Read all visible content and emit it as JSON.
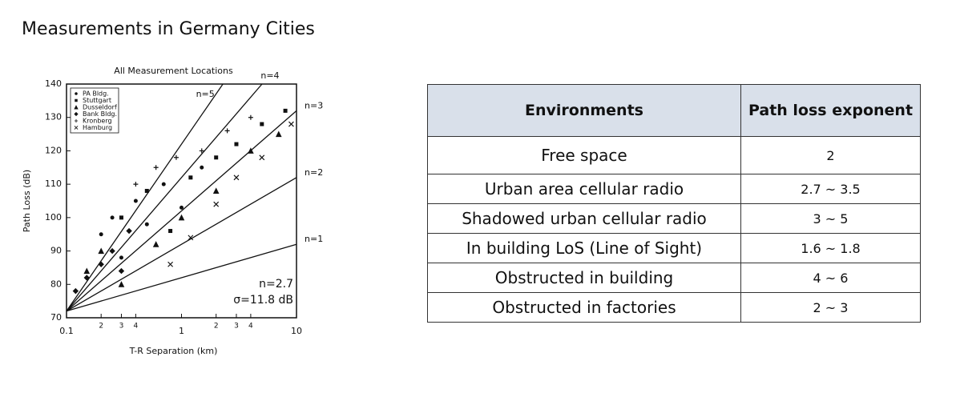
{
  "header": {
    "title": "Measurements in Germany Cities"
  },
  "chart_data": {
    "type": "scatter",
    "title": "All Measurement Locations",
    "xlabel": "T-R Separation (km)",
    "ylabel": "Path Loss (dB)",
    "xlog": true,
    "xlim": [
      0.1,
      10
    ],
    "xticks": [
      0.1,
      {
        "value": 0.2,
        "label": "2"
      },
      {
        "value": 0.3,
        "label": "3"
      },
      {
        "value": 0.4,
        "label": "4"
      },
      1,
      {
        "value": 2,
        "label": "2"
      },
      {
        "value": 3,
        "label": "3"
      },
      {
        "value": 4,
        "label": "4"
      },
      10
    ],
    "ylim": [
      70,
      140
    ],
    "yticks": [
      70,
      80,
      90,
      100,
      110,
      120,
      130,
      140
    ],
    "legend": "upper left",
    "color": "#111111",
    "series": [
      {
        "name": "PA Bldg.",
        "marker": "circle",
        "x": [
          0.2,
          0.25,
          0.3,
          0.4,
          0.5,
          0.7,
          1,
          1.5
        ],
        "values": [
          95,
          100,
          88,
          105,
          98,
          110,
          103,
          115
        ]
      },
      {
        "name": "Stuttgart",
        "marker": "square",
        "x": [
          0.3,
          0.5,
          0.8,
          1.2,
          2,
          3,
          5,
          8
        ],
        "values": [
          100,
          108,
          96,
          112,
          118,
          122,
          128,
          132
        ]
      },
      {
        "name": "Dusseldorf",
        "marker": "triangle",
        "x": [
          0.15,
          0.2,
          0.3,
          0.6,
          1,
          2,
          4,
          7
        ],
        "values": [
          84,
          90,
          80,
          92,
          100,
          108,
          120,
          125
        ]
      },
      {
        "name": "Bank Bldg.",
        "marker": "diamond",
        "x": [
          0.12,
          0.15,
          0.2,
          0.25,
          0.3,
          0.35
        ],
        "values": [
          78,
          82,
          86,
          90,
          84,
          96
        ]
      },
      {
        "name": "Kronberg",
        "marker": "plus",
        "x": [
          0.4,
          0.6,
          0.9,
          1.5,
          2.5,
          4
        ],
        "values": [
          110,
          115,
          118,
          120,
          126,
          130
        ]
      },
      {
        "name": "Hamburg",
        "marker": "cross",
        "x": [
          0.8,
          1.2,
          2,
          3,
          5,
          9
        ],
        "values": [
          86,
          94,
          104,
          112,
          118,
          128
        ]
      }
    ],
    "reference_lines": {
      "intercept": 72,
      "lines": [
        {
          "label": "n=1",
          "n": 1
        },
        {
          "label": "n=2",
          "n": 2
        },
        {
          "label": "n=3",
          "n": 3
        },
        {
          "label": "n=4",
          "n": 4
        },
        {
          "label": "n=5",
          "n": 5
        }
      ]
    },
    "annotations": [
      "n=2.7",
      "σ=11.8 dB"
    ]
  },
  "table": {
    "header": [
      "Environments",
      "Path loss exponent"
    ],
    "rows": [
      [
        "Free space",
        "2"
      ],
      [
        "Urban area cellular radio",
        "2.7 ~ 3.5"
      ],
      [
        "Shadowed urban cellular radio",
        "3 ~ 5"
      ],
      [
        "In building LoS (Line of Sight)",
        "1.6 ~ 1.8"
      ],
      [
        "Obstructed in building",
        "4 ~ 6"
      ],
      [
        "Obstructed in factories",
        "2 ~ 3"
      ]
    ]
  }
}
